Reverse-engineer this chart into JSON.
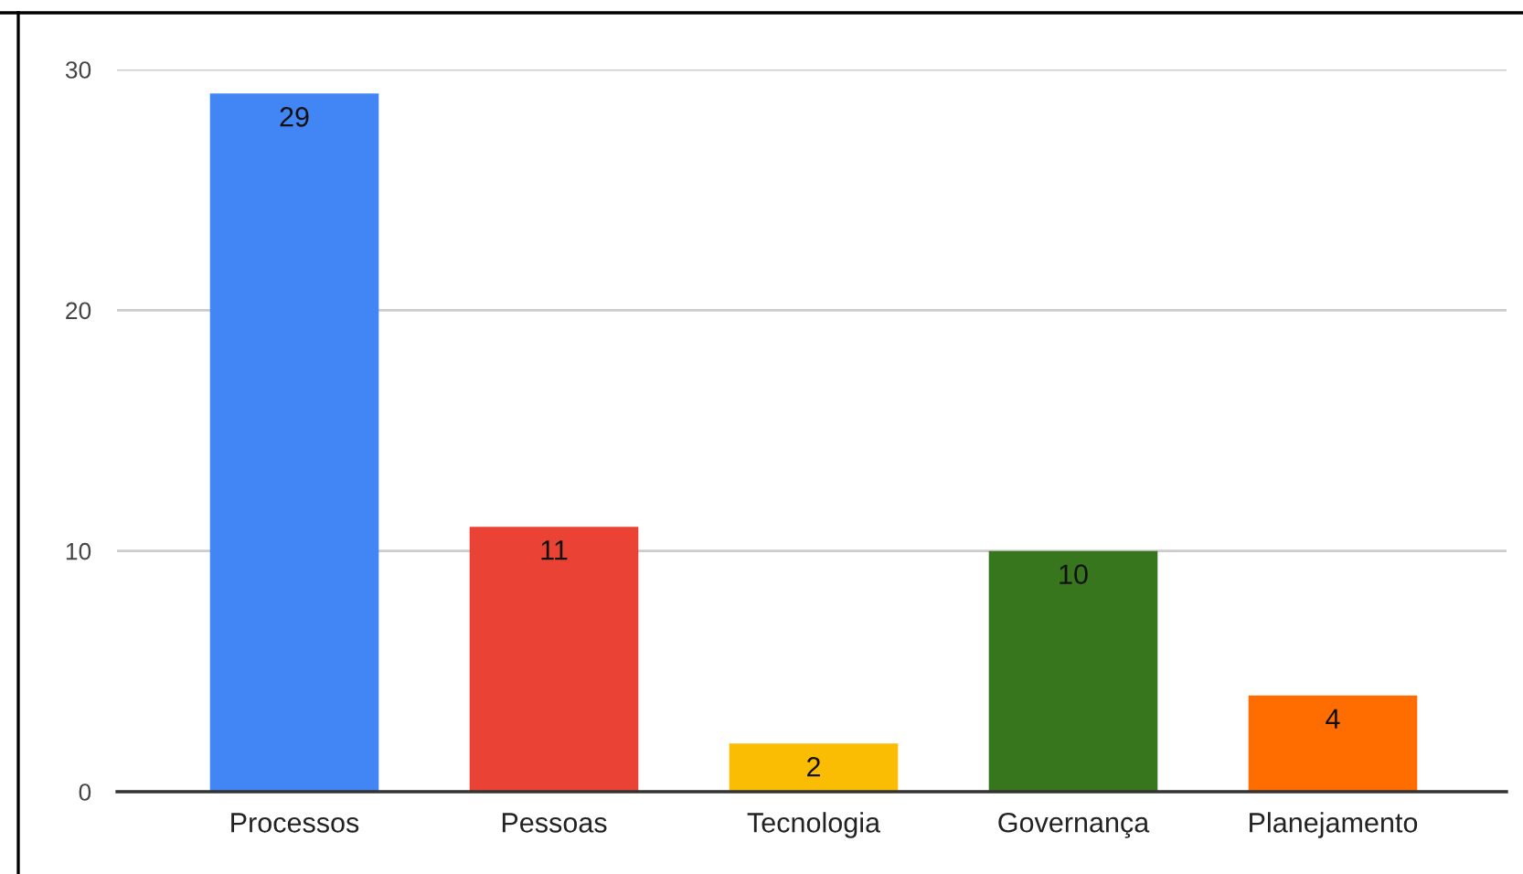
{
  "chart_data": {
    "type": "bar",
    "categories": [
      "Processos",
      "Pessoas",
      "Tecnologia",
      "Governança",
      "Planejamento"
    ],
    "values": [
      29,
      11,
      2,
      10,
      4
    ],
    "colors": [
      "#4285f4",
      "#ea4335",
      "#fbbc04",
      "#38761d",
      "#ff6d01"
    ],
    "ylim": [
      0,
      30
    ],
    "yticks": [
      0,
      10,
      20,
      30
    ],
    "grid": "y",
    "data_labels": true
  }
}
